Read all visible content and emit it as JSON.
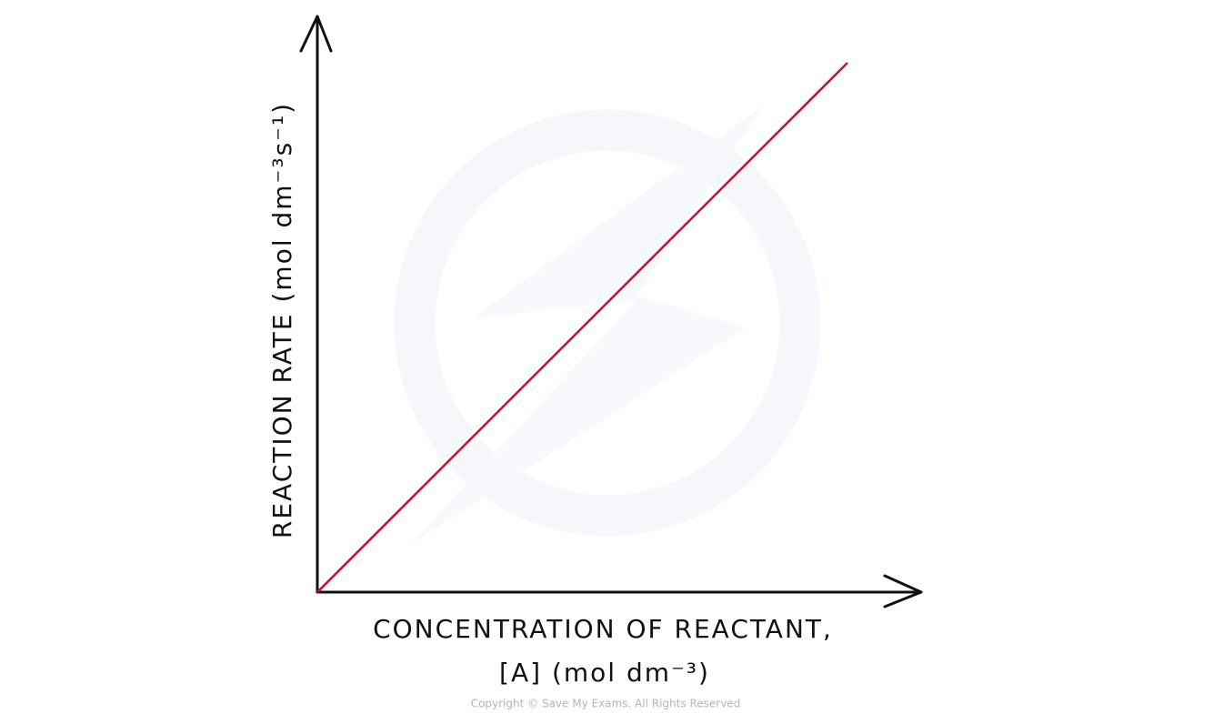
{
  "y_axis_label": "REACTION RATE (mol dm⁻³s⁻¹)",
  "x_axis_label": [
    "CONCENTRATION OF REACTANT,",
    "[A] (mol dm⁻³)"
  ],
  "copyright": "Copyright © Save My Exams. All Rights Reserved"
}
